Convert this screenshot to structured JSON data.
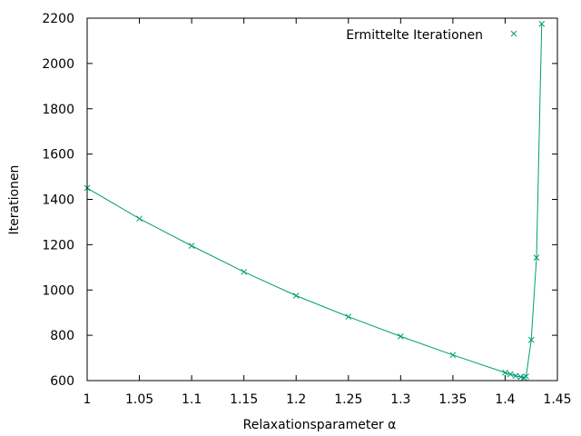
{
  "chart_data": {
    "type": "line",
    "title": "",
    "xlabel": "Relaxationsparameter α",
    "ylabel": "Iterationen",
    "xlim": [
      1.0,
      1.45
    ],
    "ylim": [
      600,
      2200
    ],
    "xticks": [
      1.0,
      1.05,
      1.1,
      1.15,
      1.2,
      1.25,
      1.3,
      1.35,
      1.4,
      1.45
    ],
    "xtick_labels": [
      "1",
      "1.05",
      "1.1",
      "1.15",
      "1.2",
      "1.25",
      "1.3",
      "1.35",
      "1.4",
      "1.45"
    ],
    "yticks": [
      600,
      800,
      1000,
      1200,
      1400,
      1600,
      1800,
      2000,
      2200
    ],
    "ytick_labels": [
      "600",
      "800",
      "1000",
      "1200",
      "1400",
      "1600",
      "1800",
      "2000",
      "2200"
    ],
    "grid": false,
    "legend_position": "top-right",
    "series": [
      {
        "name": "Ermittelte Iterationen",
        "color": "#009e73",
        "marker": "x",
        "x": [
          1.0,
          1.05,
          1.1,
          1.15,
          1.2,
          1.25,
          1.3,
          1.35,
          1.4,
          1.405,
          1.41,
          1.415,
          1.418,
          1.42,
          1.425,
          1.43,
          1.435
        ],
        "y": [
          1450,
          1315,
          1195,
          1080,
          975,
          882,
          795,
          713,
          635,
          628,
          621,
          616,
          613,
          618,
          780,
          1143,
          2175
        ]
      }
    ]
  }
}
